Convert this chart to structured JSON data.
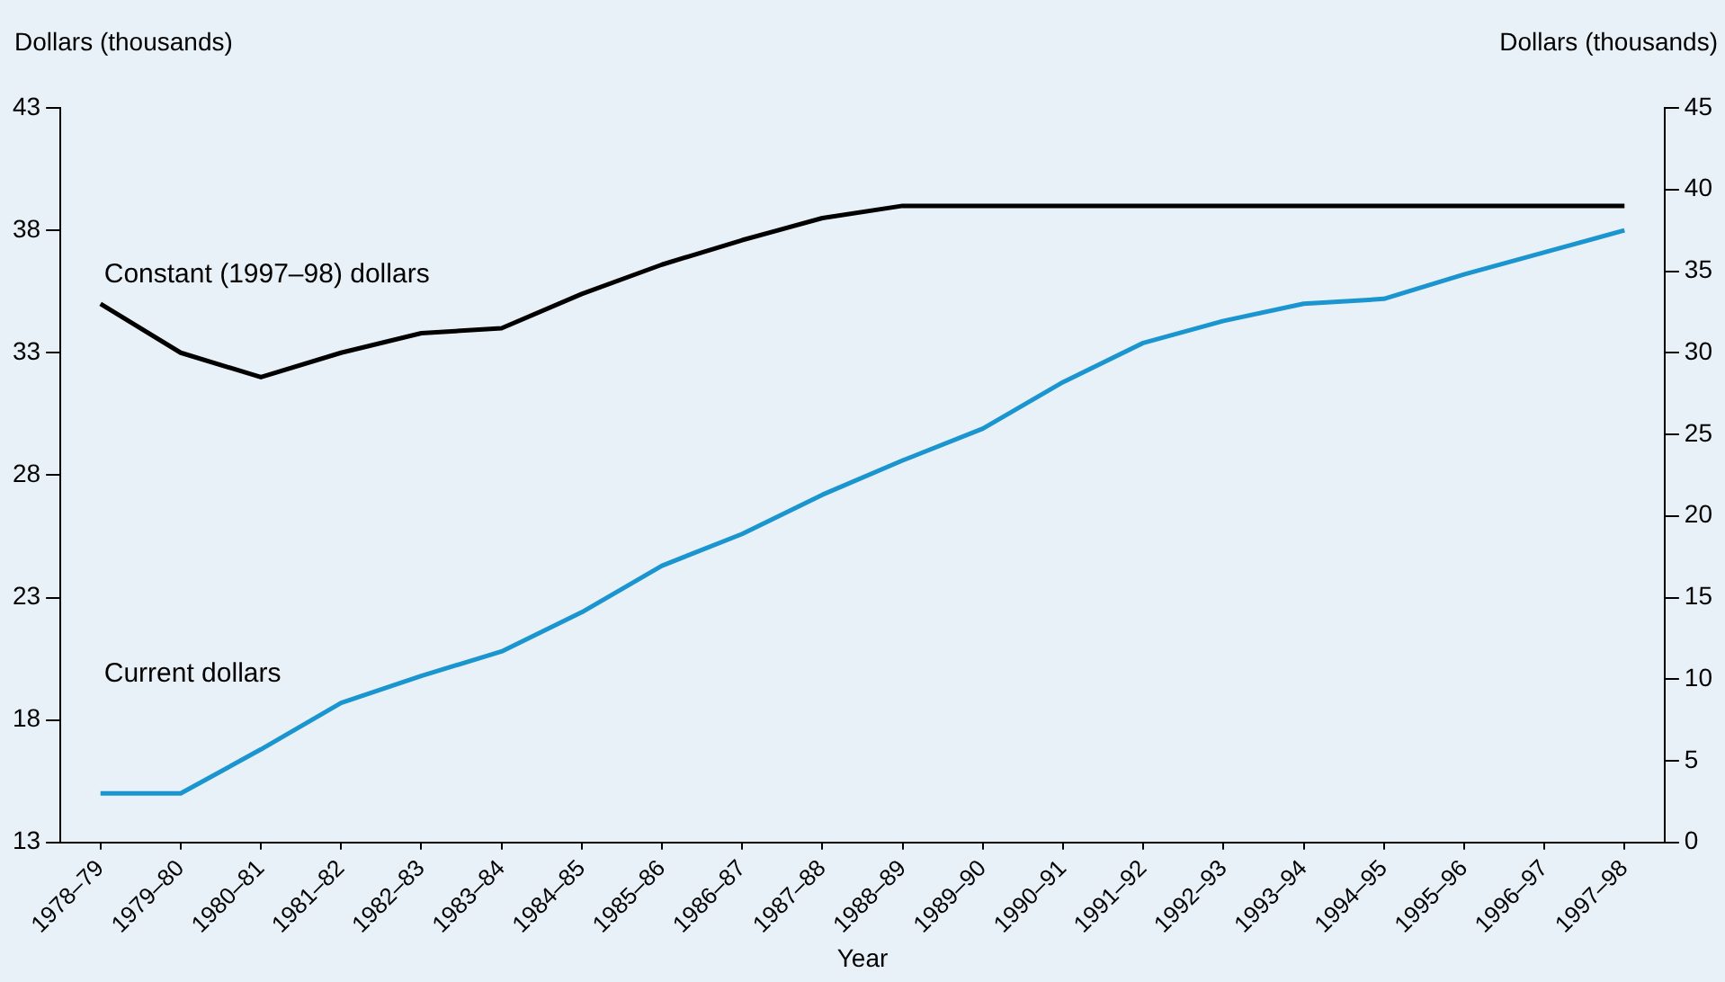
{
  "chart_data": {
    "type": "line",
    "xlabel": "Year",
    "ylabel": "Dollars (thousands)",
    "y2label": "Dollars (thousands)",
    "categories": [
      "1978–79",
      "1979–80",
      "1980–81",
      "1981–82",
      "1982–83",
      "1983–84",
      "1984–85",
      "1985–86",
      "1986–87",
      "1987–88",
      "1988–89",
      "1989–90",
      "1990–91",
      "1991–92",
      "1992–93",
      "1993–94",
      "1994–95",
      "1995–96",
      "1996–97",
      "1997–98"
    ],
    "series": [
      {
        "name": "Constant (1997–98) dollars",
        "color": "#000000",
        "values": [
          35,
          33,
          32,
          33,
          33.8,
          34,
          35.4,
          36.6,
          37.6,
          38.5,
          39,
          39,
          39,
          39,
          39,
          39,
          39,
          39,
          39,
          39
        ]
      },
      {
        "name": "Current dollars",
        "color": "#1a95cf",
        "values": [
          15,
          15,
          16.8,
          18.7,
          19.8,
          20.8,
          22.4,
          24.3,
          25.6,
          27.2,
          28.6,
          29.9,
          31.8,
          33.4,
          34.3,
          35,
          35.2,
          36.2,
          37.1,
          38
        ]
      }
    ],
    "ylim": [
      13,
      43
    ],
    "yticks": [
      13,
      18,
      23,
      28,
      33,
      38,
      43
    ],
    "y2lim": [
      0,
      45
    ],
    "y2ticks": [
      0,
      5,
      10,
      15,
      20,
      25,
      30,
      35,
      40,
      45
    ],
    "marker": "none",
    "line_style": "solid"
  }
}
